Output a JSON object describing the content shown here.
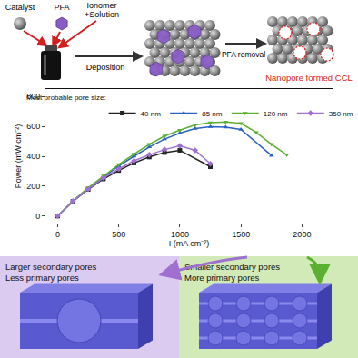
{
  "schematic": {
    "catalyst": "Catalyst",
    "pfa": "PFA",
    "ionomer": [
      "Ionomer",
      "+Solution"
    ],
    "step1": "Deposition",
    "step2": "PFA removal",
    "result": "Nanopore formed CCL"
  },
  "chart_data": {
    "type": "line",
    "x_label": "I (mA cm⁻²)",
    "y_label": "Power (mW cm⁻²)",
    "legend_title": "Most probable pore size:",
    "legend": "top left",
    "grid": false,
    "xlim": [
      -100,
      2250
    ],
    "xticks": [
      0,
      500,
      1000,
      1500,
      2000
    ],
    "ylim": [
      -50,
      850
    ],
    "yticks": [
      0,
      200,
      400,
      600,
      800
    ],
    "series": [
      {
        "name": "40 nm",
        "color": "#222222",
        "marker": "square",
        "x": [
          0,
          125,
          250,
          375,
          500,
          625,
          750,
          875,
          1000,
          1250
        ],
        "values": [
          0,
          98,
          178,
          248,
          305,
          355,
          395,
          425,
          440,
          330
        ]
      },
      {
        "name": "85 nm",
        "color": "#2a62c4",
        "marker": "triangle-up",
        "x": [
          0,
          125,
          250,
          375,
          500,
          625,
          750,
          875,
          1000,
          1125,
          1250,
          1375,
          1500,
          1750
        ],
        "values": [
          0,
          100,
          185,
          262,
          335,
          400,
          462,
          515,
          555,
          585,
          598,
          595,
          580,
          405
        ]
      },
      {
        "name": "120 nm",
        "color": "#5cb031",
        "marker": "triangle-down",
        "x": [
          0,
          125,
          250,
          375,
          500,
          625,
          750,
          875,
          1000,
          1125,
          1250,
          1375,
          1500,
          1625,
          1750,
          1875
        ],
        "values": [
          0,
          102,
          190,
          270,
          345,
          415,
          480,
          535,
          575,
          610,
          625,
          630,
          620,
          560,
          480,
          410
        ]
      },
      {
        "name": "350 nm",
        "color": "#a070d0",
        "marker": "diamond",
        "x": [
          0,
          125,
          250,
          375,
          500,
          625,
          750,
          875,
          1000,
          1125,
          1250
        ],
        "values": [
          0,
          100,
          180,
          255,
          315,
          370,
          410,
          445,
          470,
          440,
          350
        ]
      }
    ]
  },
  "panels": [
    {
      "lines": [
        "Larger secondary pores",
        "Less primary pores"
      ]
    },
    {
      "lines": [
        "Smaller secondary pores",
        "More primary pores"
      ]
    }
  ]
}
